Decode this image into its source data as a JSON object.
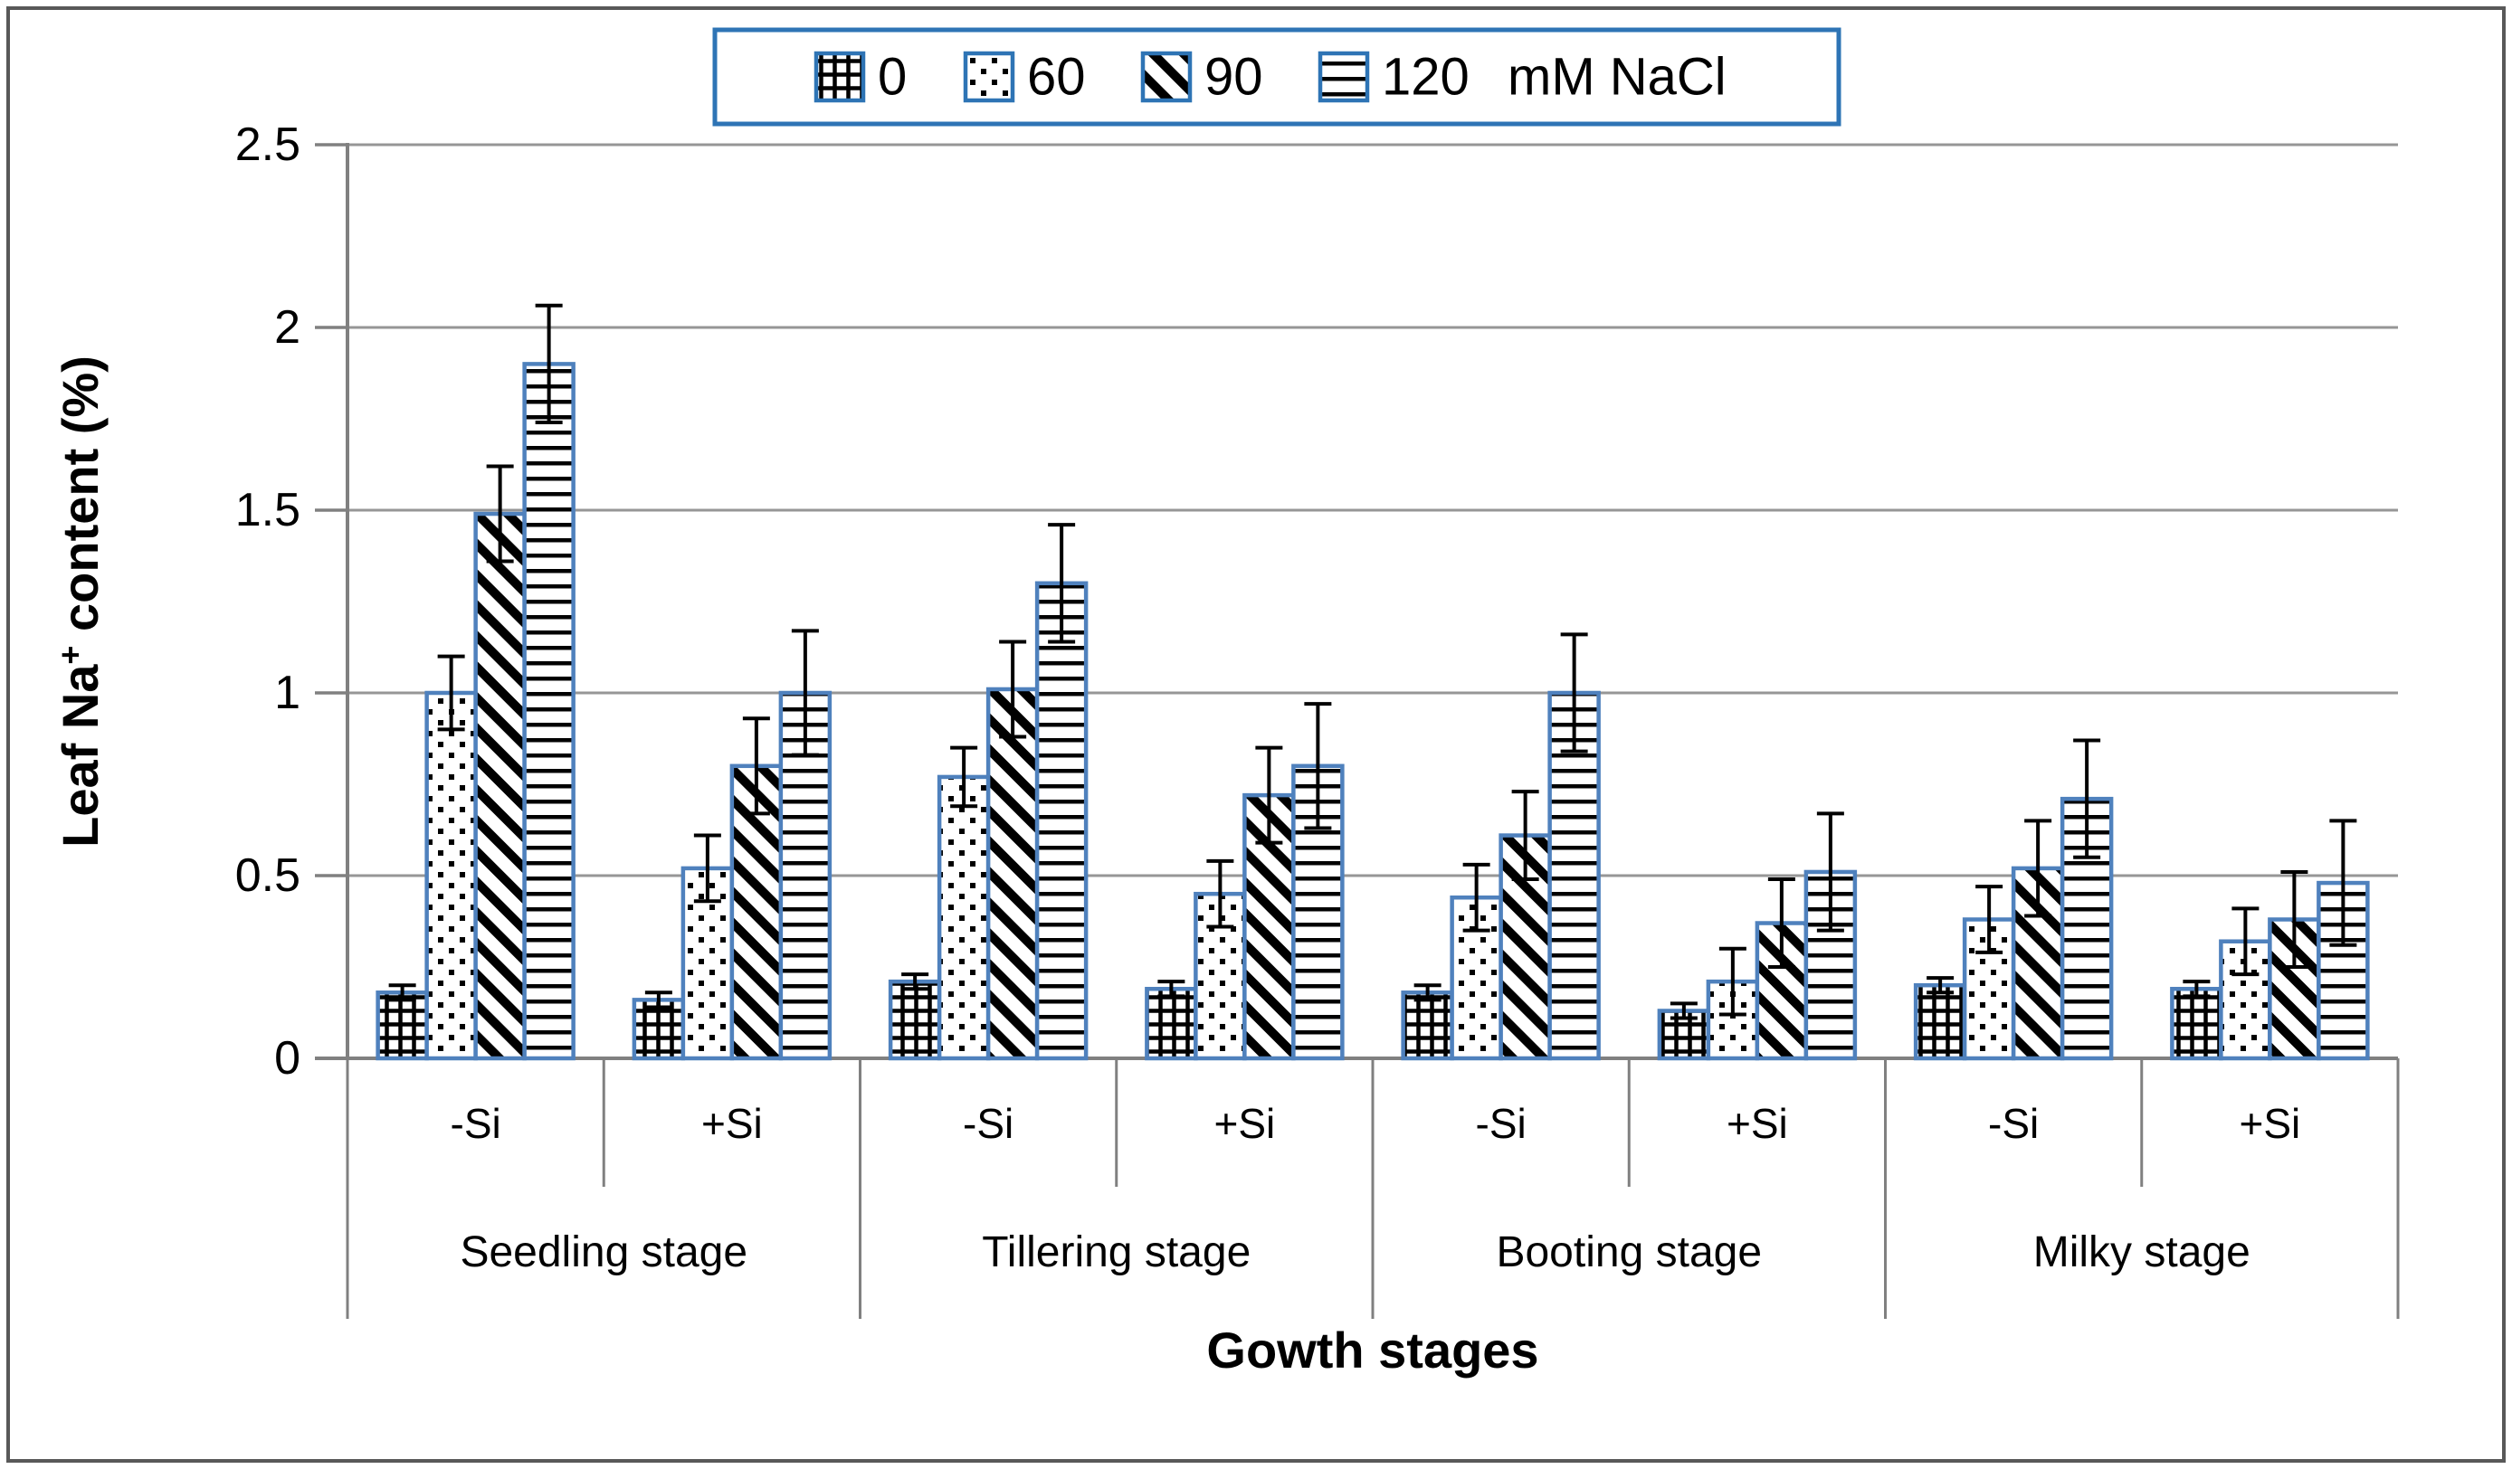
{
  "figure": {
    "kind": "grouped bar chart with error bars",
    "background": "#ffffff"
  },
  "colors": {
    "bar_border": "#4f81bd",
    "legend_border": "#2e74b5",
    "pattern_fg": "#000000",
    "pattern_bg": "#ffffff",
    "gridline": "#969696",
    "axis": "#808080",
    "figure_border": "#595959",
    "error_bar": "#000000",
    "text": "#000000"
  },
  "chart_data": {
    "type": "bar",
    "title": "",
    "xlabel": "Gowth stages",
    "ylabel": {
      "prefix": "Leaf Na",
      "superscript": "+",
      "suffix": " content (%)"
    },
    "y_axis": {
      "min": 0,
      "max": 2.5,
      "step": 0.5,
      "tick_labels": [
        "0",
        "0.5",
        "1",
        "1.5",
        "2",
        "2.5"
      ],
      "grid": true
    },
    "legend": {
      "position": "top-center",
      "items": [
        {
          "label": "0",
          "pattern": "grid"
        },
        {
          "label": "60",
          "pattern": "dots"
        },
        {
          "label": "90",
          "pattern": "diagonal"
        },
        {
          "label": "120",
          "pattern": "hlines"
        }
      ],
      "suffix": "mM NaCl"
    },
    "stages": [
      "Seedling stage",
      "Tillering stage",
      "Booting stage",
      "Milky stage"
    ],
    "si_treatments": [
      "-Si",
      "+Si"
    ],
    "series_doses_mM_NaCl": [
      "0",
      "60",
      "90",
      "120"
    ],
    "groups": [
      {
        "stage": "Seedling stage",
        "si": "-Si",
        "values": [
          0.18,
          1.0,
          1.49,
          1.9
        ],
        "errors": [
          0.02,
          0.1,
          0.13,
          0.16
        ]
      },
      {
        "stage": "Seedling stage",
        "si": "+Si",
        "values": [
          0.16,
          0.52,
          0.8,
          1.0
        ],
        "errors": [
          0.02,
          0.09,
          0.13,
          0.17
        ]
      },
      {
        "stage": "Tillering stage",
        "si": "-Si",
        "values": [
          0.21,
          0.77,
          1.01,
          1.3
        ],
        "errors": [
          0.02,
          0.08,
          0.13,
          0.16
        ]
      },
      {
        "stage": "Tillering stage",
        "si": "+Si",
        "values": [
          0.19,
          0.45,
          0.72,
          0.8
        ],
        "errors": [
          0.02,
          0.09,
          0.13,
          0.17
        ]
      },
      {
        "stage": "Booting stage",
        "si": "-Si",
        "values": [
          0.18,
          0.44,
          0.61,
          1.0
        ],
        "errors": [
          0.02,
          0.09,
          0.12,
          0.16
        ]
      },
      {
        "stage": "Booting stage",
        "si": "+Si",
        "values": [
          0.13,
          0.21,
          0.37,
          0.51
        ],
        "errors": [
          0.02,
          0.09,
          0.12,
          0.16
        ]
      },
      {
        "stage": "Milky stage",
        "si": "-Si",
        "values": [
          0.2,
          0.38,
          0.52,
          0.71
        ],
        "errors": [
          0.02,
          0.09,
          0.13,
          0.16
        ]
      },
      {
        "stage": "Milky stage",
        "si": "+Si",
        "values": [
          0.19,
          0.32,
          0.38,
          0.48
        ],
        "errors": [
          0.02,
          0.09,
          0.13,
          0.17
        ]
      }
    ]
  }
}
